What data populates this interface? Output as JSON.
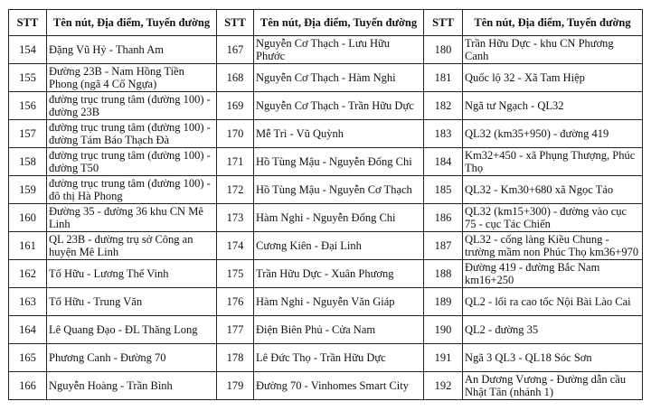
{
  "headers": {
    "stt": "STT",
    "name": "Tên nút, Địa điểm, Tuyến đường"
  },
  "rows": [
    [
      {
        "stt": "154",
        "name": "Đặng Vũ Hỷ - Thanh Am"
      },
      {
        "stt": "167",
        "name": "Nguyễn Cơ Thạch - Lưu Hữu Phước"
      },
      {
        "stt": "180",
        "name": "Trần Hữu Dực - khu CN Phương Canh"
      }
    ],
    [
      {
        "stt": "155",
        "name": "Đường 23B - Nam Hồng Tiền Phong (ngã 4 Cổ Ngựa)"
      },
      {
        "stt": "168",
        "name": "Nguyễn Cơ Thạch - Hàm Nghi"
      },
      {
        "stt": "181",
        "name": "Quốc lộ 32 - Xã Tam Hiệp"
      }
    ],
    [
      {
        "stt": "156",
        "name": "đường trục trung tâm (đường 100) - đường 23B"
      },
      {
        "stt": "169",
        "name": "Nguyễn Cơ Thạch - Trần Hữu Dực"
      },
      {
        "stt": "182",
        "name": "Ngã tư Ngạch - QL32"
      }
    ],
    [
      {
        "stt": "157",
        "name": "đường trục trung tâm (đường 100) - đường Tám Báo Thạch Đà"
      },
      {
        "stt": "170",
        "name": "Mễ Trì - Vũ Quỳnh"
      },
      {
        "stt": "183",
        "name": "QL32 (km35+950) - đường 419"
      }
    ],
    [
      {
        "stt": "158",
        "name": "đường trục trung tâm (đường 100) - đường T50"
      },
      {
        "stt": "171",
        "name": "Hồ Tùng Mậu - Nguyễn Đổng Chi"
      },
      {
        "stt": "184",
        "name": "Km32+450 - xã Phụng Thượng, Phúc Thọ"
      }
    ],
    [
      {
        "stt": "159",
        "name": "đường trục trung tâm (đường 100) - đô thị Hà Phong"
      },
      {
        "stt": "172",
        "name": "Hồ Tùng Mậu - Nguyễn Cơ Thạch"
      },
      {
        "stt": "185",
        "name": "QL32 - Km30+680 xã Ngọc Tảo"
      }
    ],
    [
      {
        "stt": "160",
        "name": "Đường 35 - đường 36 khu CN Mê Linh"
      },
      {
        "stt": "173",
        "name": "Hàm Nghi - Nguyễn Đổng Chi"
      },
      {
        "stt": "186",
        "name": "QL32 (km15+300) - đường vào cục 75 - cục Tác Chiến"
      }
    ],
    [
      {
        "stt": "161",
        "name": "QL 23B - đường trụ sở Công an huyện Mê Linh"
      },
      {
        "stt": "174",
        "name": "Cương Kiên - Đại Linh"
      },
      {
        "stt": "187",
        "name": "QL32 - cổng làng Kiều Chung - trường mầm non Phúc Thọ km36+970"
      }
    ],
    [
      {
        "stt": "162",
        "name": "Tố Hữu - Lương Thế Vinh"
      },
      {
        "stt": "175",
        "name": "Trần Hữu Dực - Xuân Phương"
      },
      {
        "stt": "188",
        "name": "Đường 419 - đường Bắc Nam km16+250"
      }
    ],
    [
      {
        "stt": "163",
        "name": "Tố Hữu - Trung Văn"
      },
      {
        "stt": "176",
        "name": "Hàm Nghi - Nguyễn Văn Giáp"
      },
      {
        "stt": "189",
        "name": "QL2 - lối ra cao tốc Nội Bài Lào Cai"
      }
    ],
    [
      {
        "stt": "164",
        "name": "Lê Quang Đạo - ĐL Thăng Long"
      },
      {
        "stt": "177",
        "name": "Điện Biên Phủ - Cửa Nam"
      },
      {
        "stt": "190",
        "name": "QL2 - đường 35"
      }
    ],
    [
      {
        "stt": "165",
        "name": "Phương Canh - Đường 70"
      },
      {
        "stt": "178",
        "name": "Lê Đức Thọ - Trần Hữu Dực"
      },
      {
        "stt": "191",
        "name": "Ngã 3 QL3 - QL18 Sóc Sơn"
      }
    ],
    [
      {
        "stt": "166",
        "name": "Nguyễn Hoàng - Trần Bình"
      },
      {
        "stt": "179",
        "name": "Đường 70 - Vinhomes Smart City"
      },
      {
        "stt": "192",
        "name": "An Dương Vương - Đường dẫn cầu Nhật Tân (nhánh 1)"
      }
    ]
  ]
}
